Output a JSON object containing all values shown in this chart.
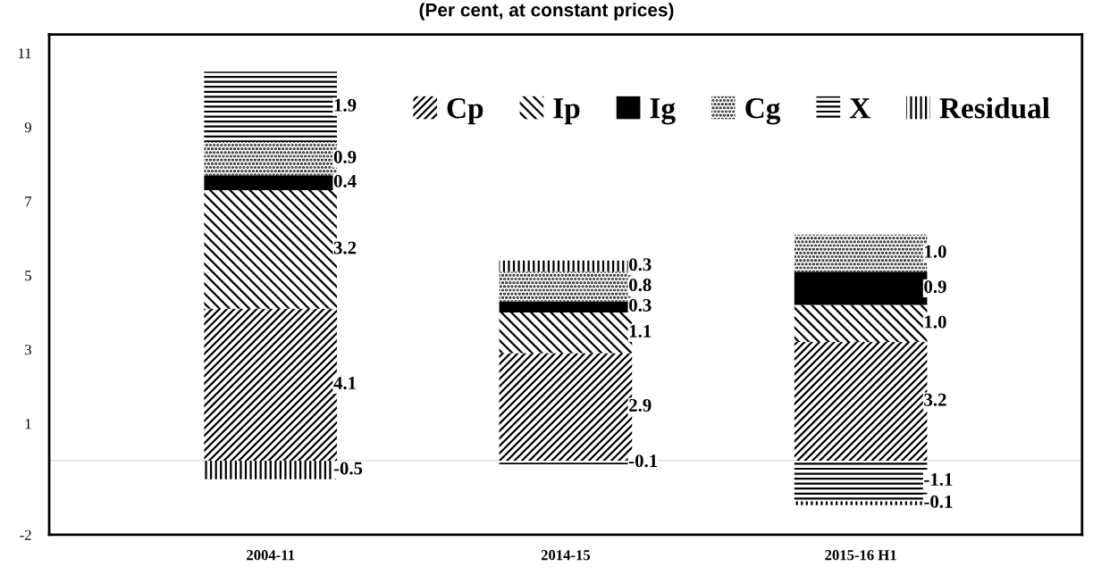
{
  "chart_data": {
    "type": "bar",
    "title": "(Per cent, at constant prices)",
    "stacked": true,
    "categories": [
      "2004-11",
      "2014-15",
      "2015-16 H1"
    ],
    "series": [
      {
        "name": "Cp",
        "color": "#000000",
        "values": [
          4.1,
          2.9,
          3.2
        ],
        "value_labels": [
          "4.1",
          "2.9",
          "3.2"
        ]
      },
      {
        "name": "Ip",
        "color": "#000000",
        "values": [
          3.2,
          1.1,
          1.0
        ],
        "value_labels": [
          "3.2",
          "1.1",
          "1.0"
        ]
      },
      {
        "name": "Ig",
        "color": "#000000",
        "values": [
          0.4,
          0.3,
          0.9
        ],
        "value_labels": [
          "0.4",
          "0.3",
          "0.9"
        ]
      },
      {
        "name": "Cg",
        "color": "#000000",
        "values": [
          0.9,
          0.8,
          1.0
        ],
        "value_labels": [
          "0.9",
          "0.8",
          "1.0"
        ]
      },
      {
        "name": "X",
        "color": "#000000",
        "values": [
          1.9,
          -0.1,
          -1.1
        ],
        "value_labels": [
          "1.9",
          "-0.1",
          "-1.1"
        ]
      },
      {
        "name": "Residual",
        "color": "#000000",
        "values": [
          -0.5,
          0.3,
          -0.1
        ],
        "value_labels": [
          "-0.5",
          "0.3",
          "-0.1"
        ]
      }
    ],
    "ylim": [
      -2,
      11.5
    ],
    "yticks": [
      -2,
      1,
      3,
      5,
      7,
      9,
      11
    ],
    "ref_lines": [
      {
        "axis": "y",
        "value": 0,
        "color": "#d9d9d9"
      }
    ],
    "legend": "top right",
    "grid": false
  }
}
